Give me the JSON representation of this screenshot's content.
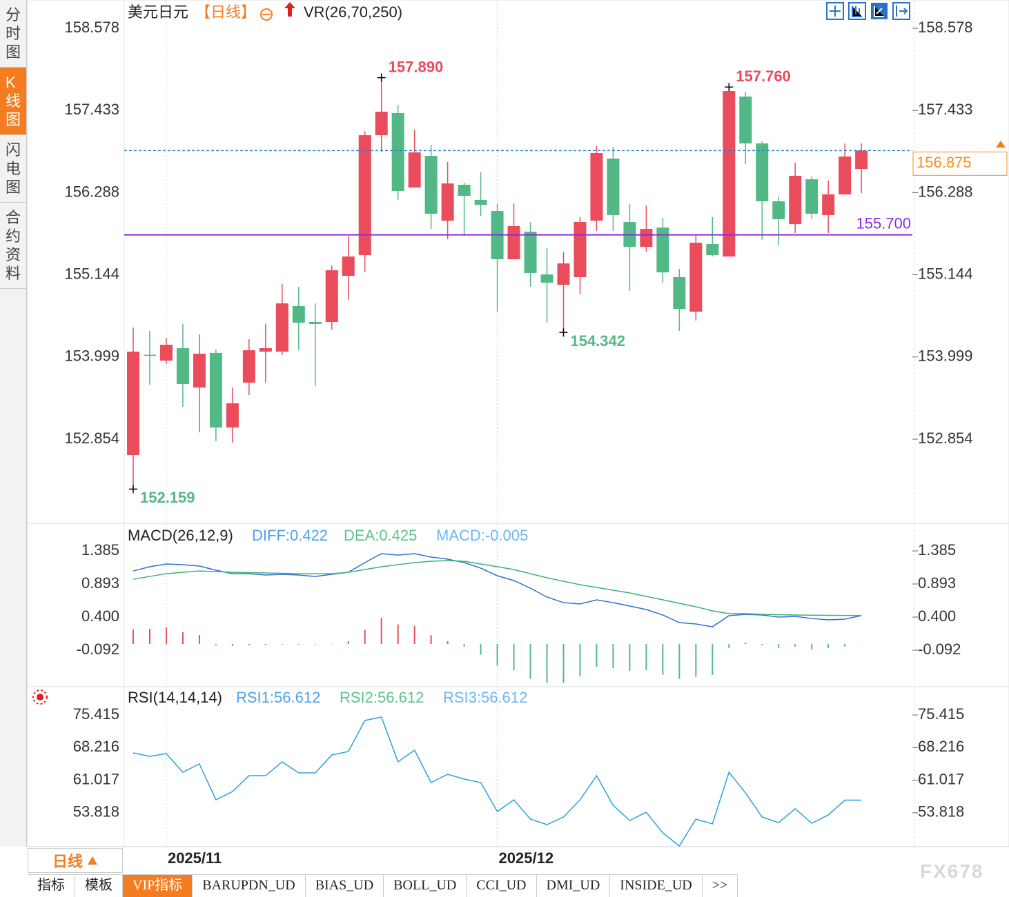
{
  "sidebar_tabs": [
    "分时图",
    "K线图",
    "闪电图",
    "合约资料"
  ],
  "chart_data": [
    {
      "type": "candlestick",
      "title": "美元日元",
      "period": "【日线】",
      "indicator": "VR(26,70,250)",
      "categories": [
        null,
        null,
        "2025/11",
        null,
        null,
        null,
        null,
        null,
        null,
        null,
        null,
        null,
        null,
        null,
        null,
        null,
        null,
        null,
        null,
        null,
        null,
        null,
        "2025/12",
        null,
        null,
        null,
        null,
        null,
        null,
        null,
        null,
        null,
        null,
        null,
        null,
        null,
        null,
        null,
        null,
        null,
        null,
        null,
        null,
        null,
        null
      ],
      "open": [
        152.633,
        154.03,
        153.949,
        154.122,
        153.574,
        154.055,
        153.017,
        153.642,
        154.074,
        154.074,
        154.708,
        154.487,
        154.487,
        155.13,
        155.418,
        157.089,
        157.397,
        156.36,
        156.801,
        155.898,
        156.398,
        156.187,
        156.033,
        155.361,
        155.745,
        155.149,
        155.005,
        155.111,
        155.898,
        156.763,
        155.879,
        155.534,
        155.803,
        155.111,
        154.631,
        155.572,
        155.399,
        157.627,
        156.974,
        156.168,
        155.85,
        156.475,
        155.976,
        156.264,
        156.619
      ],
      "high": [
        154.41,
        154.362,
        154.266,
        154.458,
        154.314,
        154.103,
        153.574,
        154.247,
        154.458,
        155.015,
        154.977,
        154.746,
        155.274,
        155.687,
        157.147,
        157.89,
        157.512,
        157.166,
        156.955,
        156.715,
        156.427,
        156.571,
        156.139,
        156.139,
        155.879,
        155.514,
        155.466,
        155.947,
        156.936,
        156.926,
        156.129,
        156.11,
        155.937,
        155.226,
        155.707,
        155.947,
        157.76,
        157.694,
        157.003,
        156.235,
        156.705,
        156.513,
        156.456,
        156.974,
        156.974
      ],
      "low": [
        152.159,
        153.613,
        153.901,
        153.305,
        152.95,
        152.825,
        152.806,
        153.469,
        153.642,
        154.026,
        154.093,
        153.594,
        154.381,
        154.794,
        155.178,
        156.859,
        156.187,
        156.36,
        155.783,
        155.639,
        155.687,
        155.966,
        154.631,
        155.361,
        154.977,
        154.477,
        154.342,
        154.871,
        155.755,
        155.755,
        154.919,
        155.466,
        155.034,
        154.362,
        154.506,
        155.399,
        155.399,
        156.686,
        155.629,
        155.553,
        155.726,
        155.918,
        155.726,
        156.264,
        156.283
      ],
      "close": [
        154.074,
        154.02,
        154.17,
        153.622,
        154.045,
        153.017,
        153.354,
        154.093,
        154.122,
        154.746,
        154.477,
        154.458,
        155.207,
        155.399,
        157.089,
        157.416,
        156.311,
        156.849,
        155.995,
        156.417,
        156.244,
        156.119,
        155.361,
        155.822,
        155.169,
        155.034,
        155.303,
        155.879,
        156.84,
        155.976,
        155.534,
        155.783,
        155.178,
        154.669,
        155.591,
        155.418,
        157.704,
        156.974,
        156.168,
        155.918,
        156.523,
        155.995,
        156.264,
        156.792,
        156.875
      ],
      "up_color": "#ea4c5c",
      "down_color": "#52b986",
      "ylim": [
        151.692,
        158.924
      ],
      "yticks": [
        158.578,
        157.433,
        156.288,
        155.144,
        153.999,
        152.854
      ],
      "extremes": [
        {
          "value": 157.89,
          "label": "157.890"
        },
        {
          "value": 157.76,
          "label": "157.760"
        },
        {
          "value": 154.342,
          "label": "154.342"
        },
        {
          "value": 152.159,
          "label": "152.159"
        }
      ],
      "last_price": 156.875,
      "last_price_color": "#ff8c1a",
      "hline": {
        "value": 155.7,
        "label": "155.700",
        "color": "#8a2be2"
      }
    },
    {
      "type": "macd",
      "legend": [
        {
          "text": "MACD(26,12,9)",
          "color": "#222222"
        },
        {
          "text": "DIFF:0.422",
          "color": "#4aa3f0"
        },
        {
          "text": "DEA:0.425",
          "color": "#5cc48a"
        },
        {
          "text": "MACD:-0.005",
          "color": "#68b8f0"
        }
      ],
      "series": [
        {
          "color": "#2f6fd6",
          "values": [
            1.087,
            1.149,
            1.19,
            1.18,
            1.159,
            1.098,
            1.046,
            1.046,
            1.026,
            1.036,
            1.026,
            1.005,
            1.036,
            1.067,
            1.211,
            1.344,
            1.323,
            1.344,
            1.293,
            1.262,
            1.211,
            1.128,
            1.016,
            0.944,
            0.831,
            0.698,
            0.615,
            0.595,
            0.657,
            0.615,
            0.564,
            0.513,
            0.431,
            0.318,
            0.297,
            0.256,
            0.421,
            0.441,
            0.431,
            0.4,
            0.41,
            0.379,
            0.359,
            0.369,
            0.422
          ]
        },
        {
          "color": "#3cb371",
          "values": [
            0.964,
            1.005,
            1.046,
            1.067,
            1.087,
            1.077,
            1.067,
            1.062,
            1.057,
            1.052,
            1.046,
            1.046,
            1.046,
            1.067,
            1.108,
            1.149,
            1.18,
            1.211,
            1.231,
            1.241,
            1.231,
            1.19,
            1.149,
            1.108,
            1.046,
            0.985,
            0.934,
            0.882,
            0.841,
            0.8,
            0.759,
            0.708,
            0.657,
            0.605,
            0.554,
            0.493,
            0.451,
            0.451,
            0.441,
            0.436,
            0.431,
            0.428,
            0.426,
            0.425,
            0.425
          ]
        }
      ],
      "histogram": {
        "up_color": "#ea4c5c",
        "down_color": "#52b986",
        "values": [
          0.215,
          0.225,
          0.246,
          0.174,
          0.133,
          -0.02,
          -0.03,
          -0.02,
          -0.02,
          -0.01,
          -0.01,
          -0.01,
          -0.005,
          0.04,
          0.21,
          0.39,
          0.29,
          0.27,
          0.13,
          0.04,
          -0.04,
          -0.16,
          -0.32,
          -0.39,
          -0.52,
          -0.58,
          -0.58,
          -0.48,
          -0.34,
          -0.36,
          -0.4,
          -0.39,
          -0.46,
          -0.52,
          -0.49,
          -0.46,
          -0.06,
          0.02,
          -0.02,
          -0.06,
          -0.04,
          -0.08,
          -0.06,
          -0.04,
          -0.005
        ]
      },
      "ylim": [
        -0.626,
        1.765
      ],
      "yticks": [
        1.385,
        0.893,
        {
          "value": 0.4,
          "label": "0.400"
        },
        -0.092
      ]
    },
    {
      "type": "line",
      "legend": [
        {
          "text": "RSI(14,14,14)",
          "color": "#222222"
        },
        {
          "text": "RSI1:56.612",
          "color": "#4aa3f0"
        },
        {
          "text": "RSI2:56.612",
          "color": "#5cc48a"
        },
        {
          "text": "RSI3:56.612",
          "color": "#68b8f0"
        }
      ],
      "series": [
        {
          "color": "#29a0e0",
          "values": [
            67.05,
            66.28,
            66.89,
            62.78,
            64.61,
            56.69,
            58.52,
            62.02,
            62.02,
            65.07,
            62.63,
            62.63,
            66.59,
            67.35,
            74.2,
            74.96,
            65.07,
            67.65,
            60.5,
            62.32,
            61.26,
            60.5,
            54.11,
            56.69,
            52.43,
            51.22,
            52.89,
            56.69,
            62.02,
            55.48,
            52.13,
            53.95,
            49.39,
            46.5,
            52.43,
            51.37,
            62.78,
            58.21,
            52.89,
            51.67,
            54.72,
            51.52,
            53.34,
            56.612,
            56.612
          ]
        }
      ],
      "ylim": [
        46.35,
        81.5
      ],
      "yticks": [
        75.415,
        68.216,
        61.017,
        53.818
      ]
    }
  ],
  "footer": {
    "period": "日线",
    "tabs": [
      "指标",
      "模板",
      "VIP指标",
      "BARUPDN_UD",
      "BIAS_UD",
      "BOLL_UD",
      "CCI_UD",
      "DMI_UD",
      "INSIDE_UD",
      ">>"
    ],
    "active_tab": 2
  },
  "watermark": "FX678"
}
